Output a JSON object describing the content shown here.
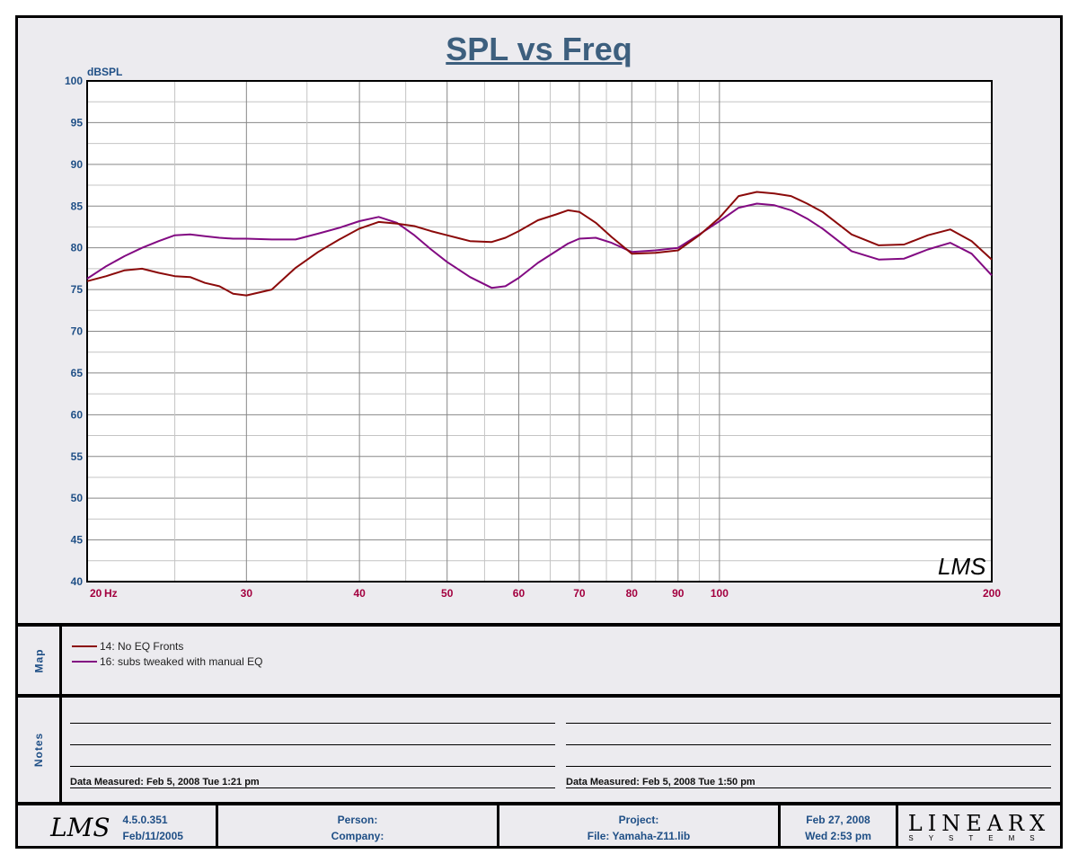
{
  "chart_data": {
    "type": "line",
    "title": "SPL vs Freq",
    "ylabel": "dBSPL",
    "xlabel": "Hz",
    "xscale": "log",
    "xlim": [
      20,
      200
    ],
    "ylim": [
      40,
      100
    ],
    "yticks": [
      40,
      45,
      50,
      55,
      60,
      65,
      70,
      75,
      80,
      85,
      90,
      95,
      100
    ],
    "xticks": [
      20,
      30,
      40,
      50,
      60,
      70,
      80,
      90,
      100,
      200
    ],
    "xtick_labels": [
      "20",
      "30",
      "40",
      "50",
      "60",
      "70",
      "80",
      "90",
      "100",
      "200"
    ],
    "xunit_label": "Hz",
    "grid": true,
    "x": [
      20,
      21,
      22,
      23,
      24,
      25,
      26,
      27,
      28,
      29,
      30,
      32,
      34,
      36,
      38,
      40,
      42,
      44,
      46,
      48,
      50,
      53,
      56,
      58,
      60,
      63,
      66,
      68,
      70,
      73,
      76,
      80,
      85,
      90,
      95,
      100,
      105,
      110,
      115,
      120,
      125,
      130,
      140,
      150,
      160,
      170,
      180,
      190,
      200
    ],
    "series": [
      {
        "name": "14: No EQ Fronts",
        "color": "#8b0a0a",
        "values": [
          76.0,
          76.6,
          77.3,
          77.5,
          77.0,
          76.6,
          76.5,
          75.8,
          75.4,
          74.5,
          74.3,
          75.0,
          77.6,
          79.5,
          81.0,
          82.3,
          83.1,
          82.9,
          82.6,
          82.0,
          81.5,
          80.8,
          80.7,
          81.2,
          82.0,
          83.3,
          84.0,
          84.5,
          84.3,
          83.0,
          81.3,
          79.3,
          79.4,
          79.7,
          81.5,
          83.6,
          86.2,
          86.7,
          86.5,
          86.2,
          85.3,
          84.3,
          81.6,
          80.3,
          80.4,
          81.5,
          82.2,
          80.8,
          78.6
        ]
      },
      {
        "name": "16: subs tweaked with manual EQ",
        "color": "#820a82",
        "values": [
          76.3,
          77.8,
          79.0,
          80.0,
          80.8,
          81.5,
          81.6,
          81.4,
          81.2,
          81.1,
          81.1,
          81.0,
          81.0,
          81.7,
          82.4,
          83.2,
          83.7,
          83.0,
          81.5,
          79.8,
          78.3,
          76.5,
          75.2,
          75.4,
          76.4,
          78.2,
          79.6,
          80.5,
          81.1,
          81.2,
          80.6,
          79.5,
          79.7,
          80.0,
          81.6,
          83.2,
          84.8,
          85.3,
          85.1,
          84.5,
          83.5,
          82.3,
          79.6,
          78.6,
          78.7,
          79.8,
          80.6,
          79.3,
          76.7
        ]
      }
    ]
  },
  "sections": {
    "map": "Map",
    "notes": "Notes"
  },
  "notes": {
    "left_measured": "Data Measured: Feb  5, 2008  Tue  1:21 pm",
    "right_measured": "Data Measured: Feb  5, 2008  Tue  1:50 pm"
  },
  "footer": {
    "logo": "LMS",
    "version": "4.5.0.351",
    "version_date": "Feb/11/2005",
    "person": "Person:",
    "company": "Company:",
    "project": "Project:",
    "file": "File: Yamaha-Z11.lib",
    "date": "Feb 27, 2008",
    "time": "Wed  2:53 pm",
    "brand": "LINEARX",
    "brand_sub": "SYSTEMS"
  },
  "watermark": "LMS",
  "colors": {
    "axis_y": "#1f4f86",
    "axis_x": "#a3003f",
    "title": "#3d5f7e"
  }
}
